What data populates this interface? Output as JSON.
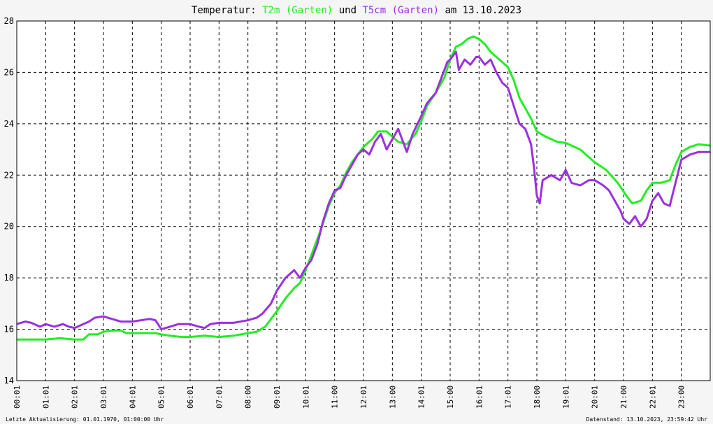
{
  "title": {
    "prefix": "Temperatur: ",
    "s1": "T2m (Garten)",
    "mid": " und ",
    "s2": "T5cm (Garten)",
    "suffix": " am 13.10.2023"
  },
  "footer": {
    "left": "Letzte Aktualisierung: 01.01.1970, 01:00:00 Uhr",
    "right": "Datenstand: 13.10.2023, 23:59:42 Uhr"
  },
  "colors": {
    "background": "#f5f5f5",
    "plot_background": "#ffffff",
    "T2m": "#22ee22",
    "T5cm": "#9b30e0",
    "grid": "#000000"
  },
  "chart_data": {
    "type": "line",
    "title": "Temperatur: T2m (Garten) und T5cm (Garten) am 13.10.2023",
    "xlabel": "",
    "ylabel": "",
    "xlim": [
      0,
      24
    ],
    "ylim": [
      14,
      28
    ],
    "yticks": [
      14,
      16,
      18,
      20,
      22,
      24,
      26,
      28
    ],
    "xticks": [
      {
        "v": 0,
        "label": "00:01"
      },
      {
        "v": 1,
        "label": "01:01"
      },
      {
        "v": 2,
        "label": "02:01"
      },
      {
        "v": 3,
        "label": "03:01"
      },
      {
        "v": 4,
        "label": "04:01"
      },
      {
        "v": 5,
        "label": "05:01"
      },
      {
        "v": 6,
        "label": "06:01"
      },
      {
        "v": 7,
        "label": "07:01"
      },
      {
        "v": 8,
        "label": "08:00"
      },
      {
        "v": 9,
        "label": "09:01"
      },
      {
        "v": 10,
        "label": "10:01"
      },
      {
        "v": 11,
        "label": "11:00"
      },
      {
        "v": 12,
        "label": "12:01"
      },
      {
        "v": 13,
        "label": "13:00"
      },
      {
        "v": 14,
        "label": "14:01"
      },
      {
        "v": 15,
        "label": "15:00"
      },
      {
        "v": 16,
        "label": "16:01"
      },
      {
        "v": 17,
        "label": "17:01"
      },
      {
        "v": 18,
        "label": "18:00"
      },
      {
        "v": 19,
        "label": "19:01"
      },
      {
        "v": 20,
        "label": "20:01"
      },
      {
        "v": 21,
        "label": "21:00"
      },
      {
        "v": 22,
        "label": "22:01"
      },
      {
        "v": 23,
        "label": "23:00"
      }
    ],
    "grid": true,
    "series": [
      {
        "name": "T2m (Garten)",
        "color": "#22ee22",
        "points": [
          [
            0,
            15.6
          ],
          [
            0.5,
            15.6
          ],
          [
            1,
            15.6
          ],
          [
            1.5,
            15.65
          ],
          [
            2,
            15.6
          ],
          [
            2.3,
            15.6
          ],
          [
            2.5,
            15.8
          ],
          [
            2.8,
            15.8
          ],
          [
            3,
            15.9
          ],
          [
            3.3,
            15.95
          ],
          [
            3.6,
            15.95
          ],
          [
            3.8,
            15.85
          ],
          [
            4.3,
            15.85
          ],
          [
            4.8,
            15.85
          ],
          [
            5,
            15.8
          ],
          [
            5.3,
            15.75
          ],
          [
            5.7,
            15.7
          ],
          [
            6,
            15.7
          ],
          [
            6.5,
            15.75
          ],
          [
            7,
            15.7
          ],
          [
            7.5,
            15.75
          ],
          [
            8,
            15.85
          ],
          [
            8.3,
            15.9
          ],
          [
            8.6,
            16.1
          ],
          [
            8.8,
            16.4
          ],
          [
            9,
            16.7
          ],
          [
            9.3,
            17.2
          ],
          [
            9.6,
            17.6
          ],
          [
            9.8,
            17.8
          ],
          [
            10,
            18.3
          ],
          [
            10.2,
            18.9
          ],
          [
            10.5,
            19.8
          ],
          [
            10.8,
            20.8
          ],
          [
            11,
            21.3
          ],
          [
            11.2,
            21.6
          ],
          [
            11.4,
            22.1
          ],
          [
            11.6,
            22.5
          ],
          [
            11.8,
            22.8
          ],
          [
            12,
            23.1
          ],
          [
            12.3,
            23.4
          ],
          [
            12.5,
            23.7
          ],
          [
            12.8,
            23.7
          ],
          [
            13,
            23.5
          ],
          [
            13.2,
            23.3
          ],
          [
            13.5,
            23.2
          ],
          [
            13.8,
            23.6
          ],
          [
            14,
            24.1
          ],
          [
            14.2,
            24.7
          ],
          [
            14.5,
            25.2
          ],
          [
            14.8,
            25.8
          ],
          [
            15,
            26.5
          ],
          [
            15.2,
            27.0
          ],
          [
            15.4,
            27.1
          ],
          [
            15.6,
            27.3
          ],
          [
            15.8,
            27.4
          ],
          [
            16,
            27.3
          ],
          [
            16.2,
            27.1
          ],
          [
            16.4,
            26.8
          ],
          [
            16.7,
            26.5
          ],
          [
            17,
            26.2
          ],
          [
            17.2,
            25.7
          ],
          [
            17.4,
            25.0
          ],
          [
            17.6,
            24.6
          ],
          [
            17.8,
            24.2
          ],
          [
            18,
            23.7
          ],
          [
            18.3,
            23.5
          ],
          [
            18.7,
            23.3
          ],
          [
            19,
            23.25
          ],
          [
            19.5,
            23.0
          ],
          [
            19.8,
            22.7
          ],
          [
            20,
            22.5
          ],
          [
            20.4,
            22.2
          ],
          [
            20.8,
            21.7
          ],
          [
            21.1,
            21.2
          ],
          [
            21.3,
            20.9
          ],
          [
            21.6,
            21.0
          ],
          [
            21.8,
            21.4
          ],
          [
            22,
            21.7
          ],
          [
            22.3,
            21.7
          ],
          [
            22.6,
            21.8
          ],
          [
            22.8,
            22.4
          ],
          [
            23,
            22.9
          ],
          [
            23.3,
            23.1
          ],
          [
            23.6,
            23.2
          ],
          [
            24,
            23.15
          ]
        ]
      },
      {
        "name": "T5cm (Garten)",
        "color": "#9b30e0",
        "points": [
          [
            0,
            16.2
          ],
          [
            0.3,
            16.3
          ],
          [
            0.5,
            16.25
          ],
          [
            0.8,
            16.1
          ],
          [
            1,
            16.2
          ],
          [
            1.3,
            16.1
          ],
          [
            1.6,
            16.2
          ],
          [
            1.8,
            16.1
          ],
          [
            2,
            16.05
          ],
          [
            2.2,
            16.15
          ],
          [
            2.5,
            16.3
          ],
          [
            2.7,
            16.45
          ],
          [
            3,
            16.5
          ],
          [
            3.3,
            16.4
          ],
          [
            3.6,
            16.3
          ],
          [
            4,
            16.3
          ],
          [
            4.3,
            16.35
          ],
          [
            4.6,
            16.4
          ],
          [
            4.8,
            16.35
          ],
          [
            5,
            16.0
          ],
          [
            5.3,
            16.1
          ],
          [
            5.6,
            16.2
          ],
          [
            6,
            16.2
          ],
          [
            6.3,
            16.1
          ],
          [
            6.5,
            16.05
          ],
          [
            6.7,
            16.2
          ],
          [
            7,
            16.25
          ],
          [
            7.5,
            16.25
          ],
          [
            8,
            16.35
          ],
          [
            8.3,
            16.45
          ],
          [
            8.5,
            16.6
          ],
          [
            8.8,
            17.0
          ],
          [
            9,
            17.5
          ],
          [
            9.3,
            18.0
          ],
          [
            9.6,
            18.3
          ],
          [
            9.8,
            18.0
          ],
          [
            10,
            18.4
          ],
          [
            10.2,
            18.7
          ],
          [
            10.4,
            19.3
          ],
          [
            10.6,
            20.2
          ],
          [
            10.8,
            20.9
          ],
          [
            11,
            21.4
          ],
          [
            11.2,
            21.5
          ],
          [
            11.4,
            22.0
          ],
          [
            11.6,
            22.4
          ],
          [
            11.8,
            22.8
          ],
          [
            12,
            23.0
          ],
          [
            12.2,
            22.8
          ],
          [
            12.4,
            23.3
          ],
          [
            12.6,
            23.6
          ],
          [
            12.8,
            23.0
          ],
          [
            13,
            23.4
          ],
          [
            13.2,
            23.8
          ],
          [
            13.4,
            23.2
          ],
          [
            13.5,
            22.9
          ],
          [
            13.7,
            23.6
          ],
          [
            14,
            24.3
          ],
          [
            14.2,
            24.8
          ],
          [
            14.5,
            25.2
          ],
          [
            14.7,
            25.8
          ],
          [
            14.9,
            26.4
          ],
          [
            15,
            26.5
          ],
          [
            15.2,
            26.8
          ],
          [
            15.3,
            26.1
          ],
          [
            15.5,
            26.5
          ],
          [
            15.7,
            26.3
          ],
          [
            15.9,
            26.6
          ],
          [
            16,
            26.6
          ],
          [
            16.2,
            26.3
          ],
          [
            16.4,
            26.5
          ],
          [
            16.6,
            26.0
          ],
          [
            16.8,
            25.6
          ],
          [
            17,
            25.4
          ],
          [
            17.2,
            24.7
          ],
          [
            17.4,
            24.0
          ],
          [
            17.6,
            23.8
          ],
          [
            17.8,
            23.2
          ],
          [
            17.9,
            22.3
          ],
          [
            18,
            21.2
          ],
          [
            18.1,
            20.9
          ],
          [
            18.2,
            21.8
          ],
          [
            18.5,
            22.0
          ],
          [
            18.8,
            21.8
          ],
          [
            19,
            22.2
          ],
          [
            19.2,
            21.7
          ],
          [
            19.5,
            21.6
          ],
          [
            19.8,
            21.8
          ],
          [
            20,
            21.8
          ],
          [
            20.3,
            21.6
          ],
          [
            20.5,
            21.4
          ],
          [
            20.7,
            21.0
          ],
          [
            20.9,
            20.6
          ],
          [
            21,
            20.3
          ],
          [
            21.2,
            20.1
          ],
          [
            21.4,
            20.4
          ],
          [
            21.6,
            20.0
          ],
          [
            21.8,
            20.3
          ],
          [
            22,
            21.0
          ],
          [
            22.2,
            21.3
          ],
          [
            22.4,
            20.9
          ],
          [
            22.6,
            20.8
          ],
          [
            22.8,
            21.7
          ],
          [
            23,
            22.6
          ],
          [
            23.3,
            22.8
          ],
          [
            23.6,
            22.9
          ],
          [
            24,
            22.9
          ]
        ]
      }
    ]
  }
}
